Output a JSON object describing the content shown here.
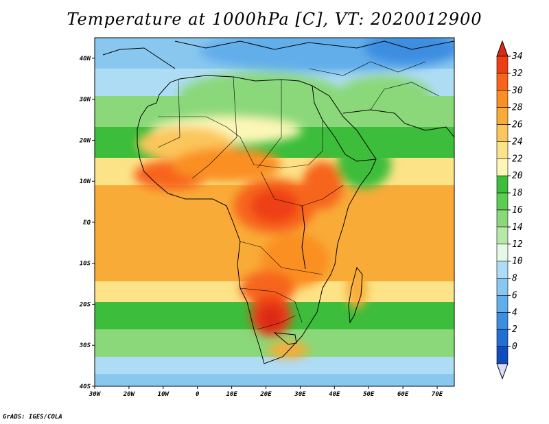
{
  "map": {
    "title": "Temperature at 1000hPa [C], VT: 2020012900",
    "credit": "GrADS: IGES/COLA",
    "lon_range": [
      -30,
      75
    ],
    "lat_range": [
      -40,
      45
    ],
    "lon_ticks": [
      "30W",
      "20W",
      "10W",
      "0",
      "10E",
      "20E",
      "30E",
      "40E",
      "50E",
      "60E",
      "70E"
    ],
    "lat_ticks": [
      "40N",
      "30N",
      "20N",
      "10N",
      "EQ",
      "10S",
      "20S",
      "30S",
      "40S"
    ],
    "colorbar": {
      "labels": [
        "34",
        "32",
        "30",
        "28",
        "26",
        "24",
        "22",
        "20",
        "18",
        "16",
        "14",
        "12",
        "10",
        "8",
        "6",
        "4",
        "2",
        "0"
      ],
      "colors": [
        "#da2a14",
        "#ee3f14",
        "#f7651b",
        "#fa8f24",
        "#f9ab38",
        "#fbc65b",
        "#fde387",
        "#fdf7b7",
        "#3cbd3b",
        "#5ccc52",
        "#8ad87a",
        "#b8e8a9",
        "#e6f8e6",
        "#afdcf5",
        "#89c7ef",
        "#62aeea",
        "#3c8ee1",
        "#236ed3",
        "#0f4dbf",
        "#08309a"
      ]
    }
  }
}
